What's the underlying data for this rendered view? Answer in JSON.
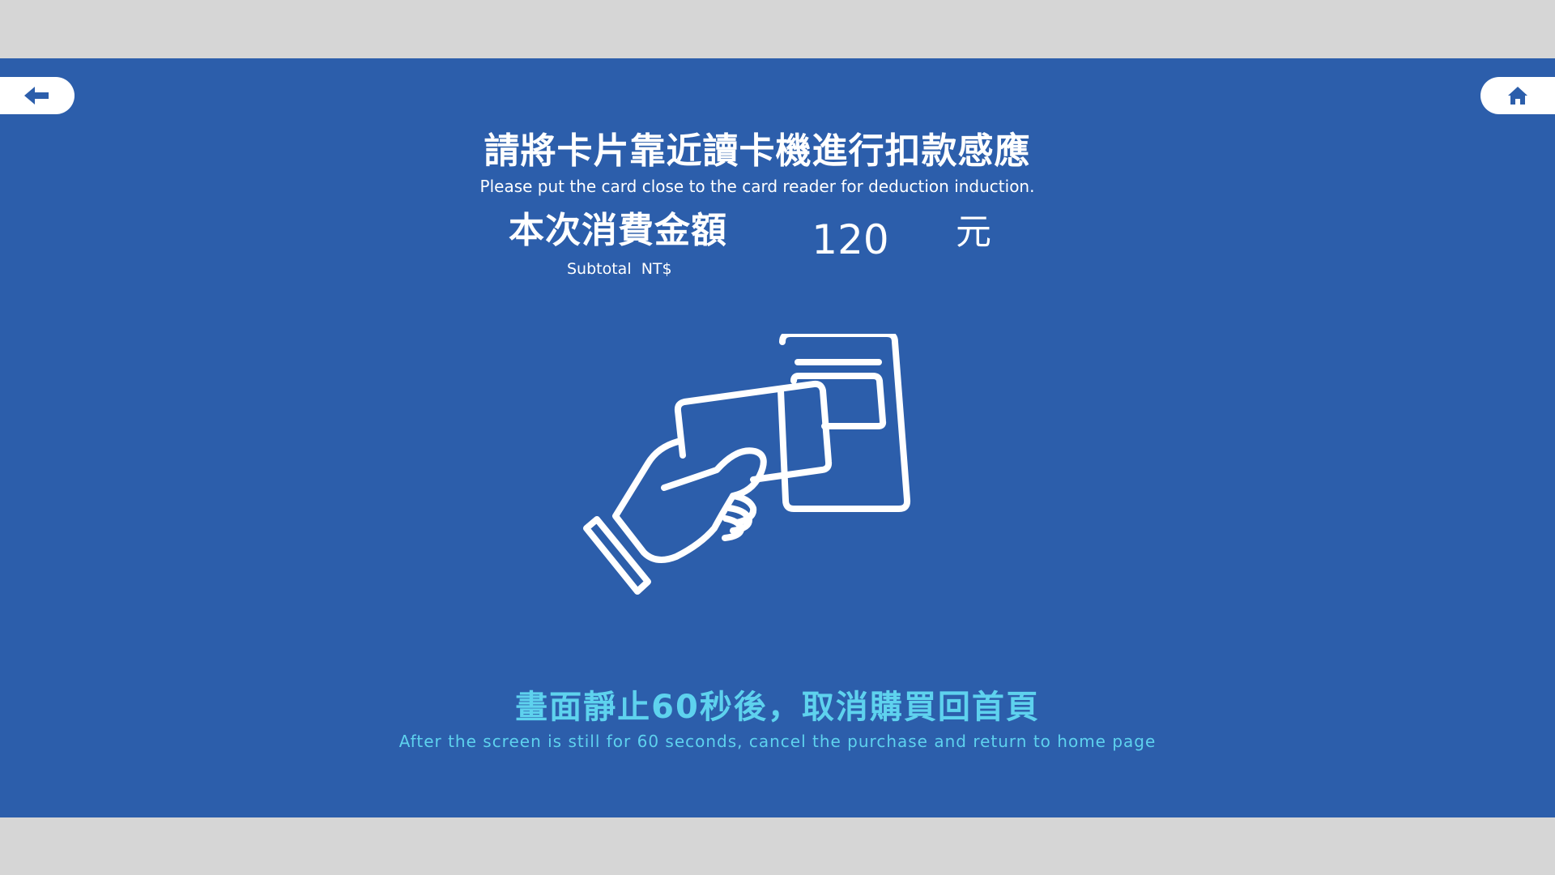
{
  "nav": {
    "back_icon": "arrow-left-icon",
    "home_icon": "home-icon"
  },
  "instruction": {
    "zh": "請將卡片靠近讀卡機進行扣款感應",
    "en": "Please put the card close to the card reader for deduction induction."
  },
  "amount": {
    "label_zh": "本次消費金額",
    "label_en": "Subtotal  NT$",
    "value": "120",
    "unit": "元"
  },
  "illustration": {
    "icon": "hand-card-reader-icon"
  },
  "timeout": {
    "zh": "畫面靜止60秒後，取消購買回首頁",
    "en": "After the screen is still for 60 seconds, cancel the purchase and return to home page"
  },
  "colors": {
    "background": "#2c5eab",
    "accent_text": "#5ed2ee",
    "frame": "#d6d6d6"
  }
}
